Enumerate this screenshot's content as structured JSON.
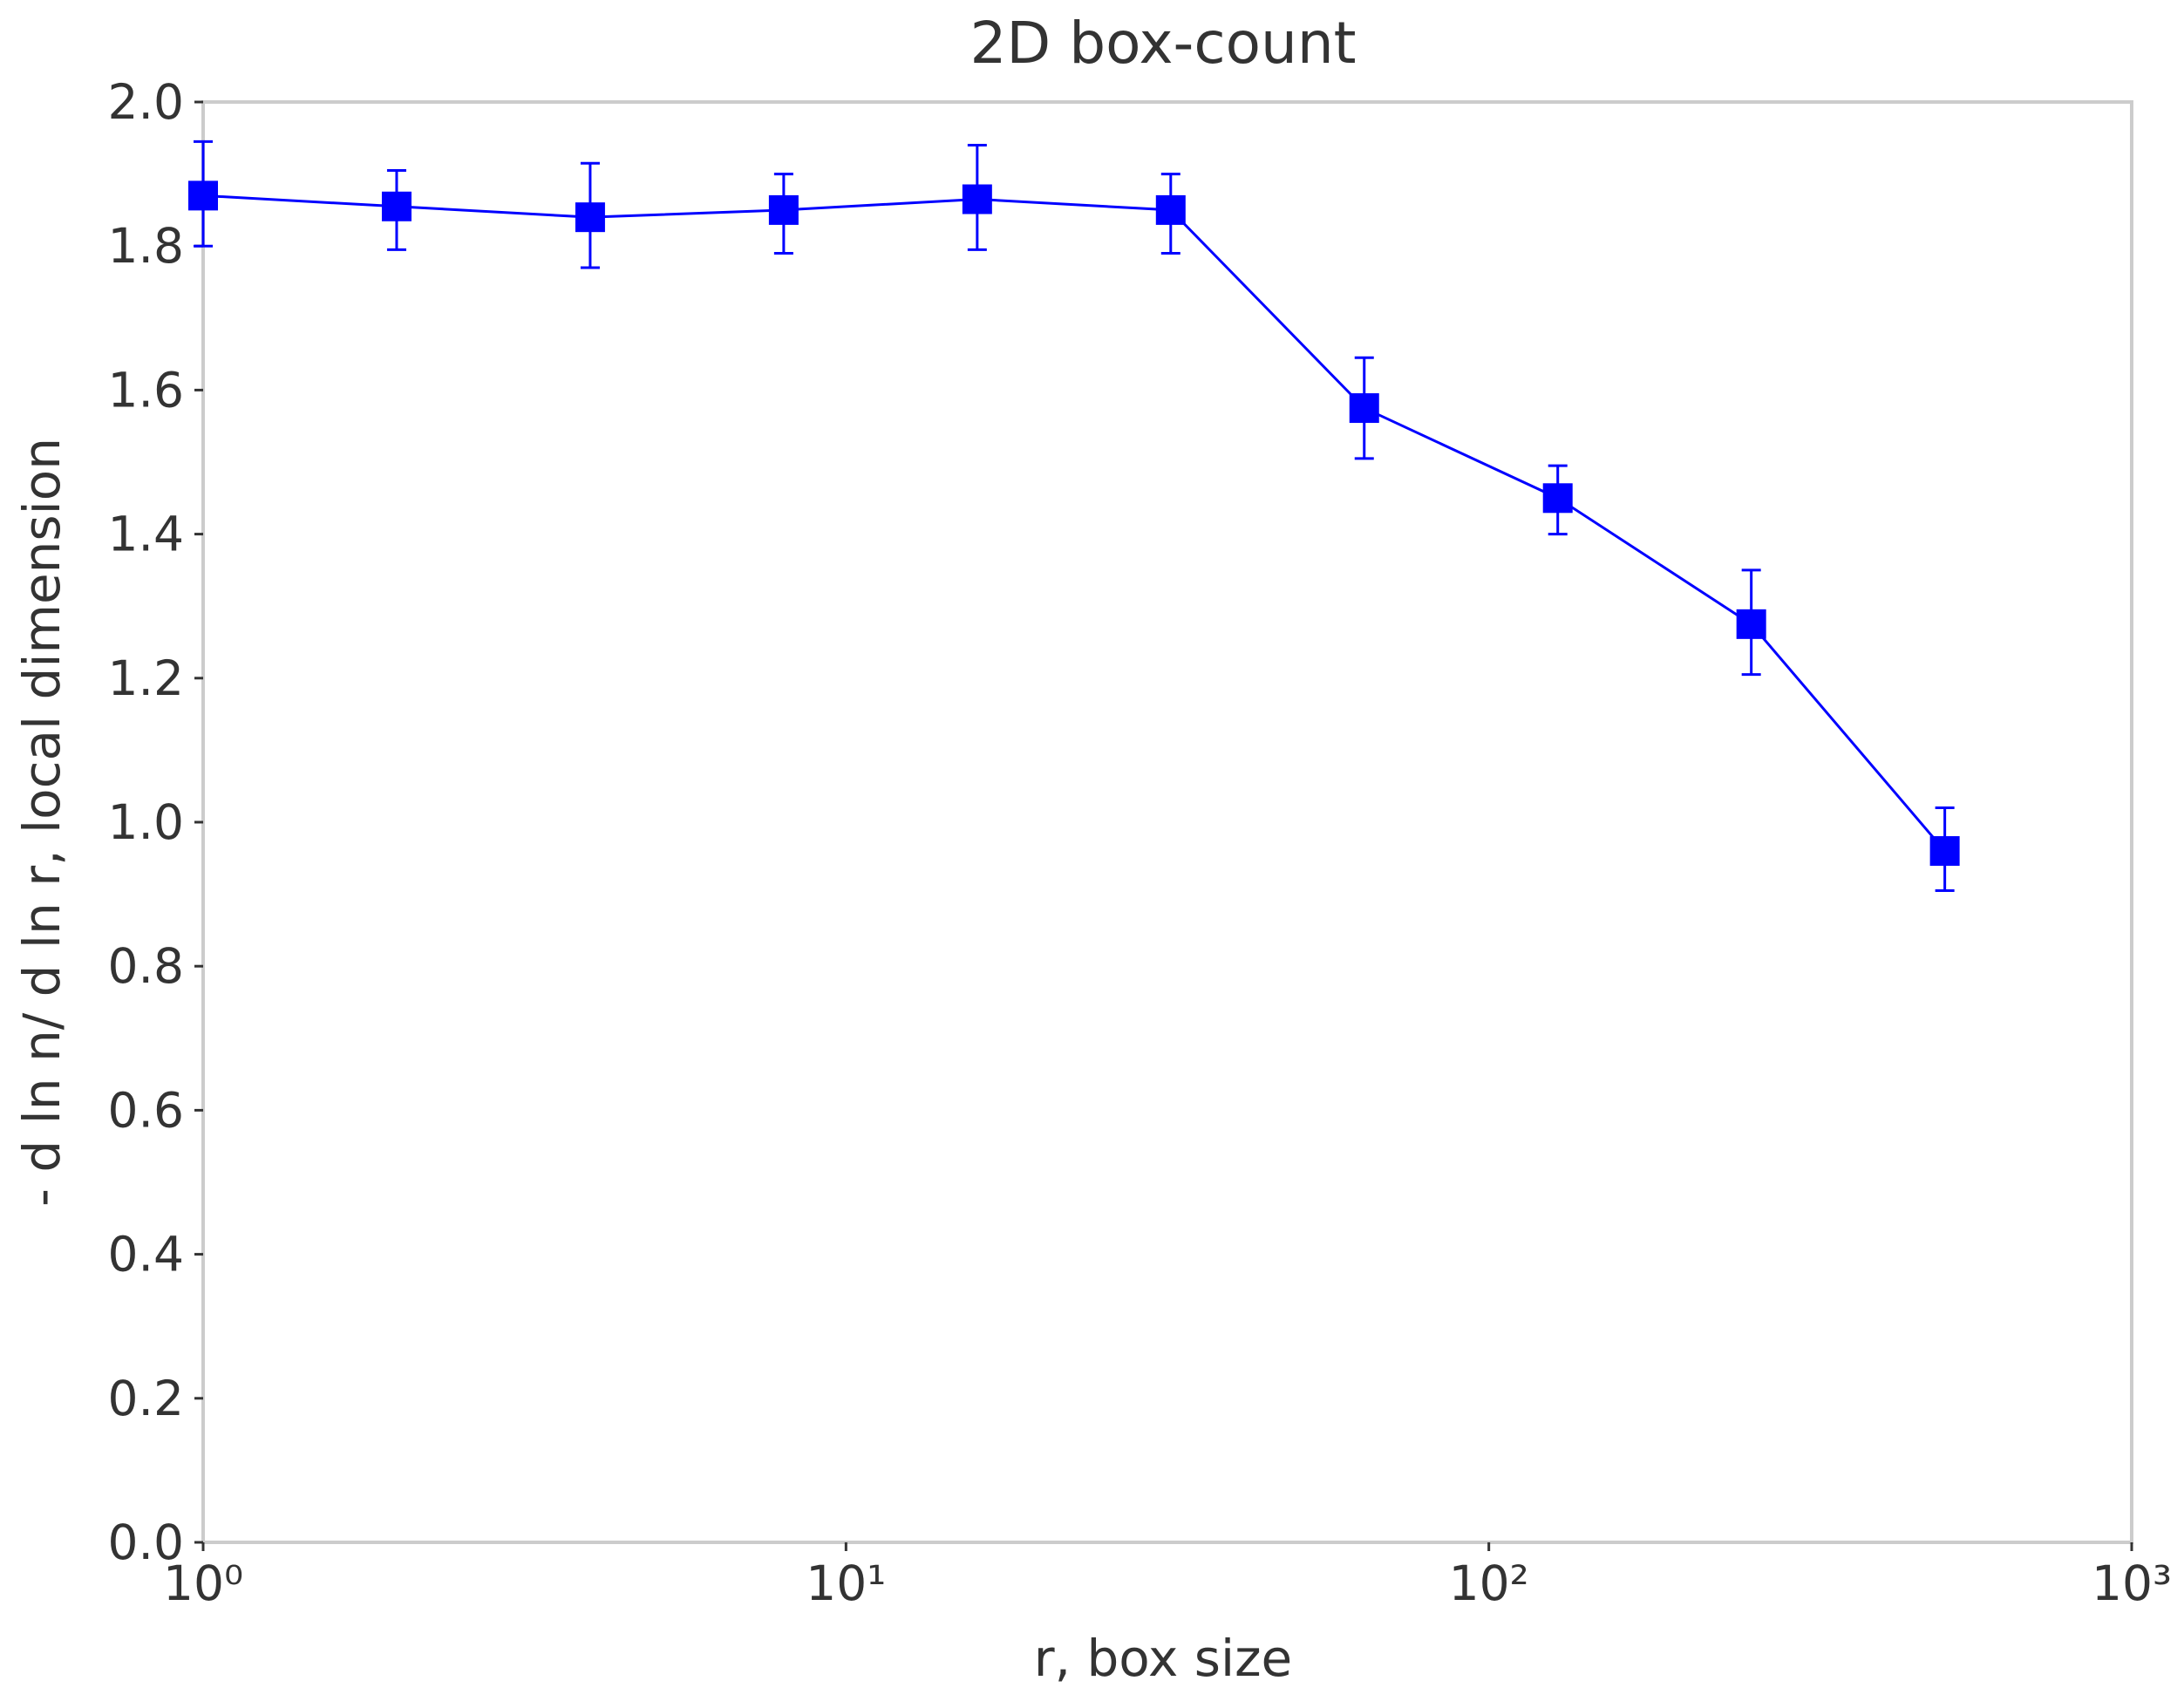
{
  "chart_data": {
    "type": "line",
    "title": "2D box-count",
    "xlabel": "r, box size",
    "ylabel": "- d ln n/ d ln r, local dimension",
    "x_scale": "log",
    "xlim": [
      1,
      1000
    ],
    "ylim": [
      0.0,
      2.0
    ],
    "grid": false,
    "x_ticks": [
      {
        "value": 1,
        "label": "10⁰"
      },
      {
        "value": 10,
        "label": "10¹"
      },
      {
        "value": 100,
        "label": "10²"
      },
      {
        "value": 1000,
        "label": "10³"
      }
    ],
    "y_ticks": [
      {
        "value": 0.0,
        "label": "0.0"
      },
      {
        "value": 0.2,
        "label": "0.2"
      },
      {
        "value": 0.4,
        "label": "0.4"
      },
      {
        "value": 0.6,
        "label": "0.6"
      },
      {
        "value": 0.8,
        "label": "0.8"
      },
      {
        "value": 1.0,
        "label": "1.0"
      },
      {
        "value": 1.2,
        "label": "1.2"
      },
      {
        "value": 1.4,
        "label": "1.4"
      },
      {
        "value": 1.6,
        "label": "1.6"
      },
      {
        "value": 1.8,
        "label": "1.8"
      },
      {
        "value": 2.0,
        "label": "2.0"
      }
    ],
    "series": [
      {
        "color": "#0000ff",
        "marker": "square",
        "x": [
          1,
          2,
          4,
          8,
          16,
          32,
          64,
          128,
          256,
          512
        ],
        "y": [
          1.87,
          1.855,
          1.84,
          1.85,
          1.865,
          1.85,
          1.575,
          1.45,
          1.275,
          0.96
        ],
        "y_err_low": [
          1.8,
          1.795,
          1.77,
          1.79,
          1.795,
          1.79,
          1.505,
          1.4,
          1.205,
          0.905
        ],
        "y_err_high": [
          1.945,
          1.905,
          1.915,
          1.9,
          1.94,
          1.9,
          1.645,
          1.495,
          1.35,
          1.02
        ]
      }
    ]
  },
  "colors": {
    "frame": "#cccccc",
    "tick": "#333333",
    "series": "#0000ff"
  }
}
